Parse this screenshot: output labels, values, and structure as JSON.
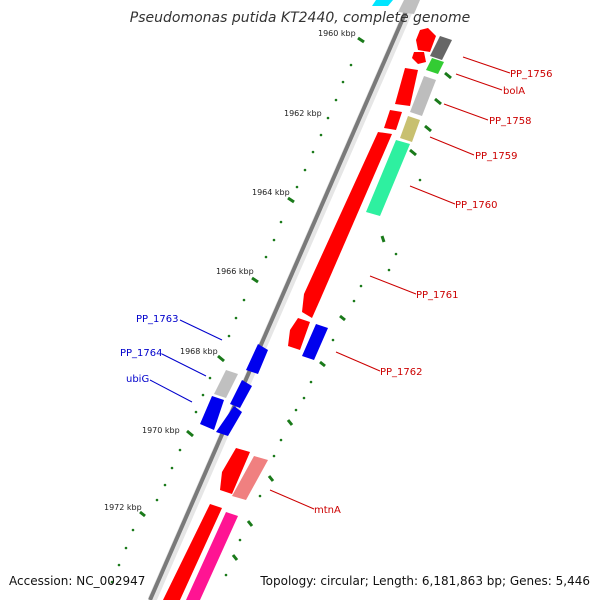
{
  "title": "Pseudomonas putida KT2440, complete genome",
  "footer": {
    "accession": "Accession: NC_002947",
    "info": "Topology: circular; Length: 6,181,863 bp; Genes: 5,446"
  },
  "colors": {
    "backbone_dark": "#777777",
    "backbone_light": "#d0d0d0",
    "forward_red": "#ff0000",
    "reverse_blue": "#0000ee",
    "label_red": "#cc0000",
    "label_blue": "#0000cc",
    "tick_green": "#1a7a1a",
    "gray": "#bdbdbd",
    "dark_gray": "#666666",
    "green": "#33cc33",
    "khaki": "#c8c070",
    "aquamarine": "#2ef0a0",
    "salmon": "#f08080",
    "magenta": "#ff1493",
    "cyan": "#00e5ff"
  },
  "ticks": [
    "1960 kbp",
    "1962 kbp",
    "1964 kbp",
    "1966 kbp",
    "1968 kbp",
    "1970 kbp",
    "1972 kbp"
  ],
  "gene_labels": [
    {
      "text": "PP_1756",
      "color": "red"
    },
    {
      "text": "bolA",
      "color": "red"
    },
    {
      "text": "PP_1758",
      "color": "red"
    },
    {
      "text": "PP_1759",
      "color": "red"
    },
    {
      "text": "PP_1760",
      "color": "red"
    },
    {
      "text": "PP_1761",
      "color": "red"
    },
    {
      "text": "PP_1762",
      "color": "red"
    },
    {
      "text": "mtnA",
      "color": "red"
    },
    {
      "text": "PP_1763",
      "color": "blue"
    },
    {
      "text": "PP_1764",
      "color": "blue"
    },
    {
      "text": "ubiG",
      "color": "blue"
    }
  ]
}
